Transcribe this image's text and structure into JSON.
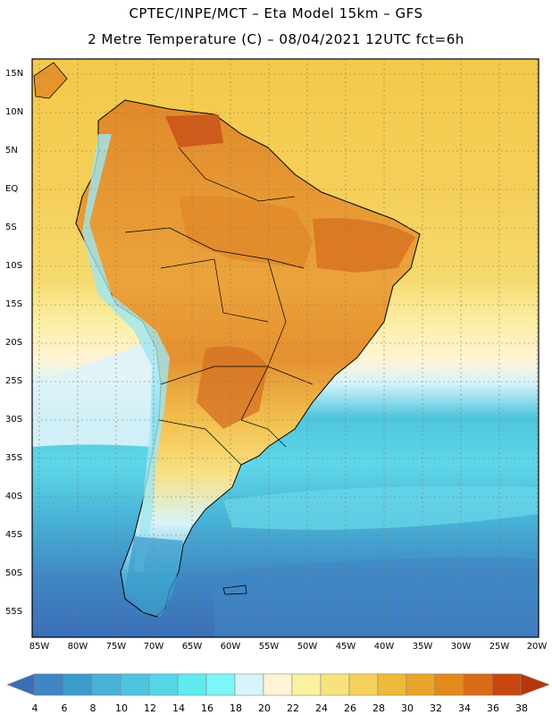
{
  "header": {
    "line1": "CPTEC/INPE/MCT –  Eta Model 15km – GFS",
    "line2": "2 Metre Temperature (C) – 08/04/2021 12UTC fct=6h"
  },
  "lat_labels": [
    "15N",
    "10N",
    "5N",
    "EQ",
    "5S",
    "10S",
    "15S",
    "20S",
    "25S",
    "30S",
    "35S",
    "40S",
    "45S",
    "50S",
    "55S"
  ],
  "lon_labels": [
    "85W",
    "80W",
    "75W",
    "70W",
    "65W",
    "60W",
    "55W",
    "50W",
    "45W",
    "40W",
    "35W",
    "30W",
    "25W",
    "20W"
  ],
  "colorbar": {
    "labels": [
      "4",
      "6",
      "8",
      "10",
      "12",
      "14",
      "16",
      "18",
      "20",
      "22",
      "24",
      "26",
      "28",
      "30",
      "32",
      "34",
      "36",
      "38"
    ],
    "colors": [
      "#3a6fb8",
      "#3f86c4",
      "#3b9ccc",
      "#47b1d6",
      "#4dc5de",
      "#55d6e6",
      "#5eeaee",
      "#7cf6f8",
      "#d6f4fa",
      "#fff4d6",
      "#fbf2a0",
      "#f8e27e",
      "#f4d15a",
      "#eeb938",
      "#eba428",
      "#e4891c",
      "#da6a14",
      "#c84610",
      "#b8360c"
    ]
  },
  "region": "South America"
}
